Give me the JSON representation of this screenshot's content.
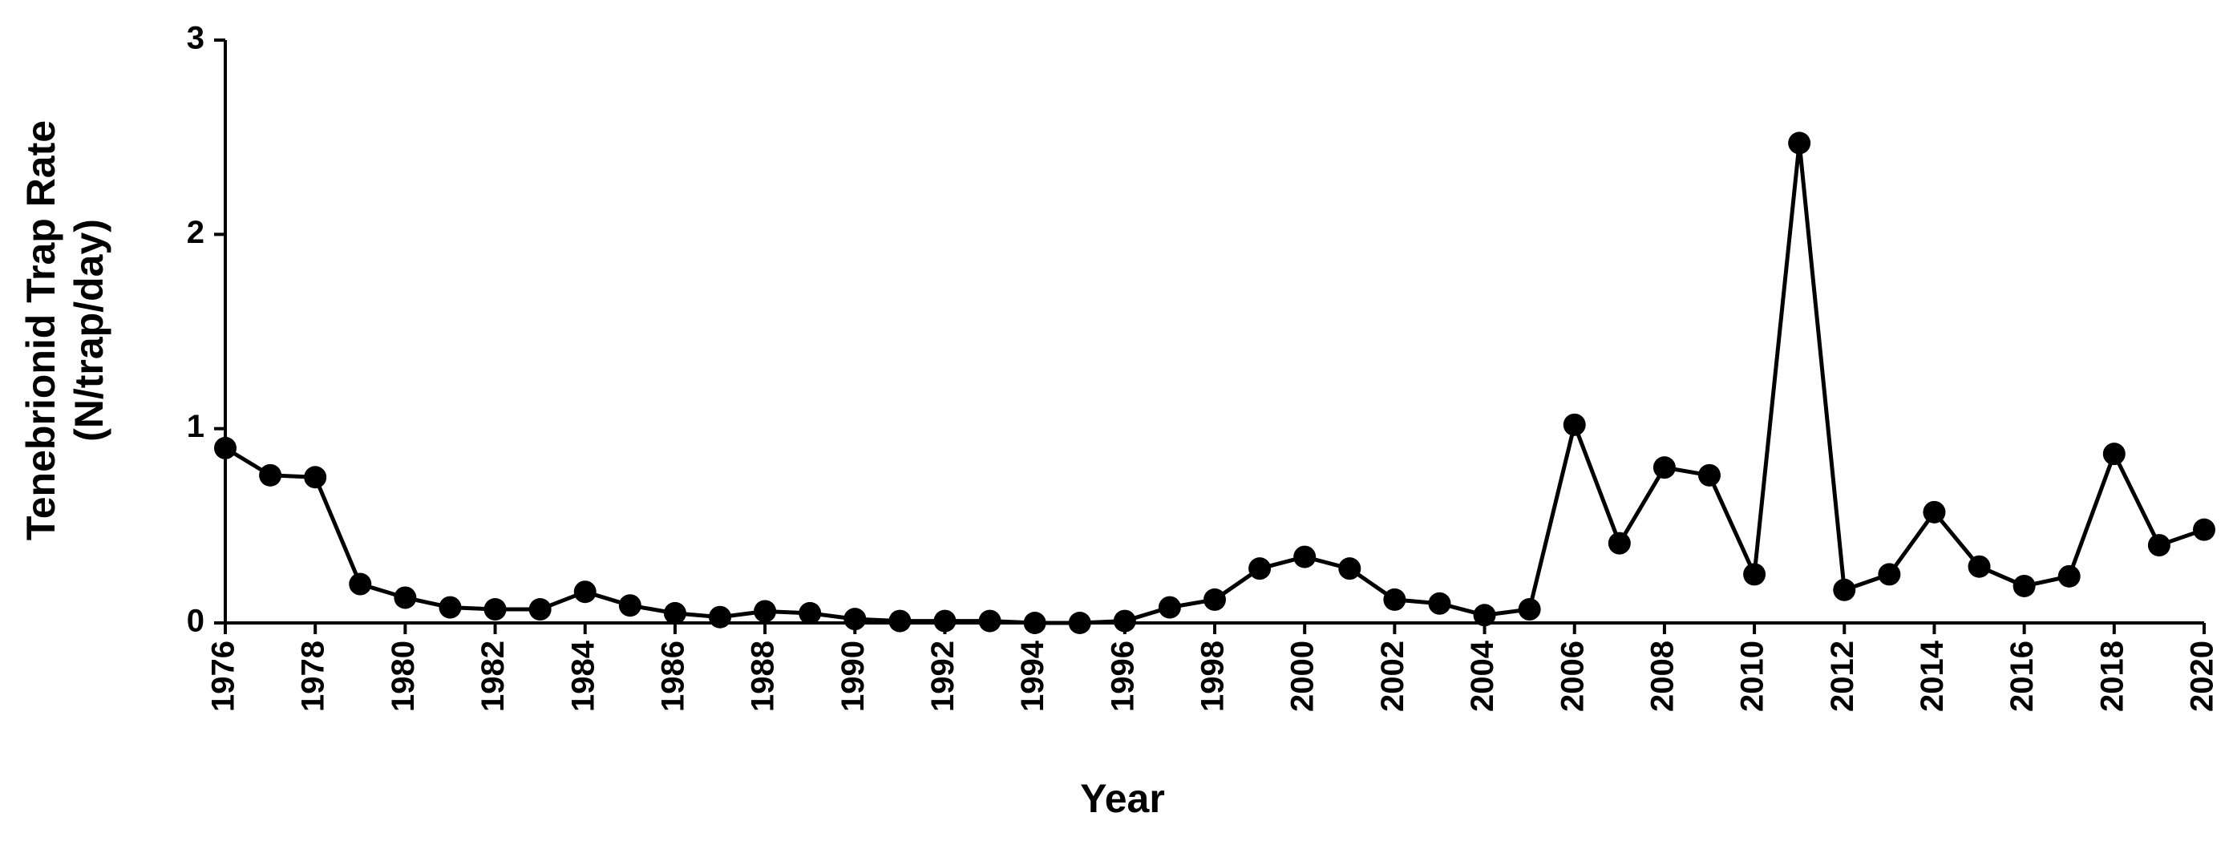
{
  "chart_data": {
    "type": "line",
    "xlabel": "Year",
    "ylabel": [
      "Tenebrionid Trap Rate",
      "(N/trap/day)"
    ],
    "x": [
      1976,
      1977,
      1978,
      1979,
      1980,
      1981,
      1982,
      1983,
      1984,
      1985,
      1986,
      1987,
      1988,
      1989,
      1990,
      1991,
      1992,
      1993,
      1994,
      1995,
      1996,
      1997,
      1998,
      1999,
      2000,
      2001,
      2002,
      2003,
      2004,
      2005,
      2006,
      2007,
      2008,
      2009,
      2010,
      2011,
      2012,
      2013,
      2014,
      2015,
      2016,
      2017,
      2018,
      2019,
      2020
    ],
    "values": [
      0.9,
      0.76,
      0.75,
      0.2,
      0.13,
      0.08,
      0.07,
      0.07,
      0.16,
      0.09,
      0.05,
      0.03,
      0.06,
      0.05,
      0.02,
      0.01,
      0.01,
      0.01,
      0.0,
      0.0,
      0.01,
      0.08,
      0.12,
      0.28,
      0.34,
      0.28,
      0.12,
      0.1,
      0.04,
      0.07,
      1.02,
      0.41,
      0.8,
      0.76,
      0.25,
      2.47,
      0.17,
      0.25,
      0.57,
      0.29,
      0.19,
      0.24,
      0.87,
      0.4,
      0.48
    ],
    "color": "#000000",
    "xlim": [
      1976,
      2020
    ],
    "xticks": [
      1976,
      1978,
      1980,
      1982,
      1984,
      1986,
      1988,
      1990,
      1992,
      1994,
      1996,
      1998,
      2000,
      2002,
      2004,
      2006,
      2008,
      2010,
      2012,
      2014,
      2016,
      2018,
      2020
    ],
    "ylim": [
      0,
      3
    ],
    "yticks": [
      0,
      1,
      2,
      3
    ]
  }
}
